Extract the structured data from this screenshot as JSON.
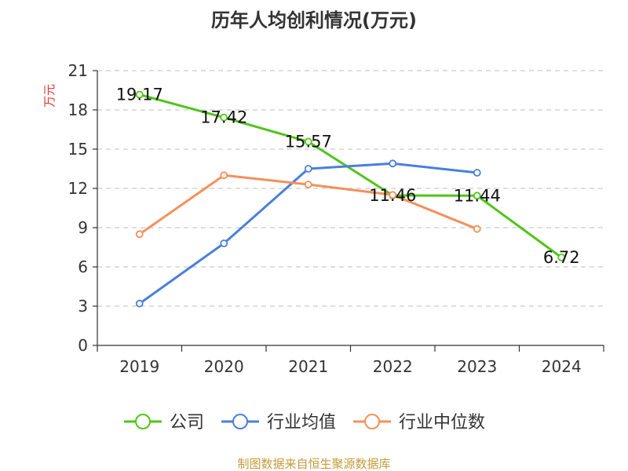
{
  "chart_data": {
    "type": "line",
    "title": "历年人均创利情况(万元)",
    "ylabel": "万元",
    "xlabel": "",
    "categories": [
      "2019",
      "2020",
      "2021",
      "2022",
      "2023",
      "2024"
    ],
    "ylim": [
      0,
      21
    ],
    "yticks": [
      0,
      3,
      6,
      9,
      12,
      15,
      18,
      21
    ],
    "grid": true,
    "legend_position": "bottom",
    "series": [
      {
        "name": "公司",
        "color": "#52c41a",
        "values": [
          19.17,
          17.42,
          15.57,
          11.46,
          11.44,
          6.72
        ],
        "labels": [
          "19.17",
          "17.42",
          "15.57",
          "11.46",
          "11.44",
          "6.72"
        ]
      },
      {
        "name": "行业均值",
        "color": "#4a7fdb",
        "values": [
          3.2,
          7.8,
          13.5,
          13.9,
          13.2,
          null
        ]
      },
      {
        "name": "行业中位数",
        "color": "#f4905a",
        "values": [
          8.5,
          13.0,
          12.3,
          11.5,
          8.9,
          null
        ]
      }
    ]
  },
  "source": "制图数据来自恒生聚源数据库"
}
